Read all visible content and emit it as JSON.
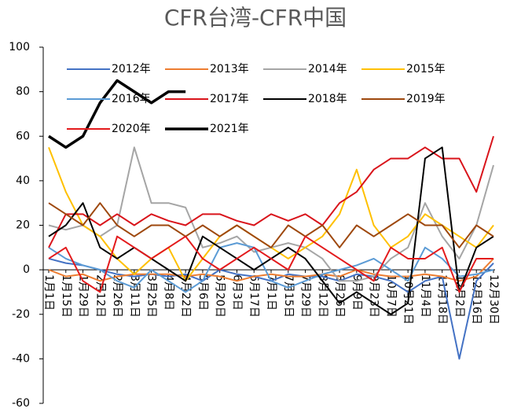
{
  "chart_data": {
    "type": "line",
    "title": "CFR台湾-CFR中国",
    "categories": [
      "1月1日",
      "1月15日",
      "1月29日",
      "2月12日",
      "2月26日",
      "3月11日",
      "3月25日",
      "4月8日",
      "4月22日",
      "5月6日",
      "5月20日",
      "6月3日",
      "6月17日",
      "7月1日",
      "7月15日",
      "7月29日",
      "8月12日",
      "8月26日",
      "9月9日",
      "9月23日",
      "10月7日",
      "10月21日",
      "11月4日",
      "11月18日",
      "12月2日",
      "12月16日",
      "12月30日"
    ],
    "ylim": [
      -60,
      100
    ],
    "yticks": [
      -60,
      -40,
      -20,
      0,
      20,
      40,
      60,
      80,
      100
    ],
    "series": [
      {
        "name": "2012年",
        "color": "#4472c4",
        "width": 2,
        "values": [
          5,
          3,
          2,
          0,
          -2,
          -3,
          -2,
          -3,
          -2,
          -5,
          0,
          -2,
          -3,
          -5,
          -2,
          -3,
          -3,
          -5,
          -2,
          -3,
          -5,
          -10,
          -5,
          -3,
          -40,
          -5,
          3
        ]
      },
      {
        "name": "2013年",
        "color": "#ed7d31",
        "width": 2,
        "values": [
          0,
          -3,
          -2,
          -5,
          -3,
          -2,
          -2,
          -2,
          -3,
          -2,
          -3,
          -5,
          -3,
          -2,
          -3,
          -3,
          -2,
          -3,
          0,
          -2,
          -3,
          -3,
          -2,
          -3,
          -5,
          -3,
          5
        ]
      },
      {
        "name": "2014年",
        "color": "#a5a5a5",
        "width": 2,
        "values": [
          20,
          18,
          20,
          15,
          20,
          55,
          30,
          30,
          28,
          10,
          12,
          15,
          8,
          10,
          12,
          10,
          5,
          -5,
          -5,
          -3,
          5,
          10,
          30,
          15,
          5,
          20,
          47
        ]
      },
      {
        "name": "2015年",
        "color": "#ffc000",
        "width": 2,
        "values": [
          55,
          35,
          20,
          15,
          5,
          -2,
          5,
          10,
          -5,
          5,
          15,
          20,
          15,
          10,
          5,
          10,
          15,
          25,
          45,
          20,
          10,
          15,
          25,
          20,
          15,
          10,
          20
        ]
      },
      {
        "name": "2016年",
        "color": "#5b9bd5",
        "width": 2,
        "values": [
          10,
          5,
          2,
          0,
          -5,
          -8,
          0,
          -5,
          -10,
          -5,
          10,
          12,
          10,
          -5,
          -8,
          -5,
          -2,
          0,
          2,
          5,
          0,
          -5,
          10,
          5,
          -3,
          -2,
          0
        ]
      },
      {
        "name": "2017年",
        "color": "#d9141b",
        "width": 2,
        "values": [
          10,
          25,
          25,
          20,
          25,
          20,
          25,
          22,
          20,
          25,
          25,
          22,
          20,
          25,
          22,
          25,
          20,
          30,
          35,
          45,
          50,
          50,
          55,
          50,
          50,
          35,
          60
        ]
      },
      {
        "name": "2018年",
        "color": "#000000",
        "width": 2,
        "values": [
          15,
          20,
          30,
          10,
          5,
          10,
          5,
          0,
          -5,
          15,
          10,
          5,
          0,
          5,
          10,
          5,
          -5,
          -15,
          -10,
          -15,
          -20,
          -15,
          50,
          55,
          -10,
          10,
          15
        ]
      },
      {
        "name": "2019年",
        "color": "#9e480e",
        "width": 2,
        "values": [
          30,
          25,
          20,
          30,
          20,
          15,
          20,
          20,
          15,
          20,
          15,
          20,
          15,
          10,
          20,
          15,
          20,
          10,
          20,
          15,
          20,
          25,
          20,
          20,
          10,
          20,
          15
        ]
      },
      {
        "name": "2020年",
        "color": "#e31a1c",
        "width": 2,
        "values": [
          5,
          10,
          -5,
          -10,
          15,
          10,
          5,
          10,
          15,
          5,
          0,
          5,
          10,
          5,
          0,
          15,
          10,
          5,
          0,
          -5,
          10,
          5,
          5,
          10,
          -10,
          5,
          5
        ]
      },
      {
        "name": "2021年",
        "color": "#000000",
        "width": 3.5,
        "values": [
          60,
          55,
          60,
          75,
          85,
          80,
          75,
          80,
          80,
          null,
          null,
          null,
          null,
          null,
          null,
          null,
          null,
          null,
          null,
          null,
          null,
          null,
          null,
          null,
          null,
          null,
          null
        ]
      }
    ]
  }
}
